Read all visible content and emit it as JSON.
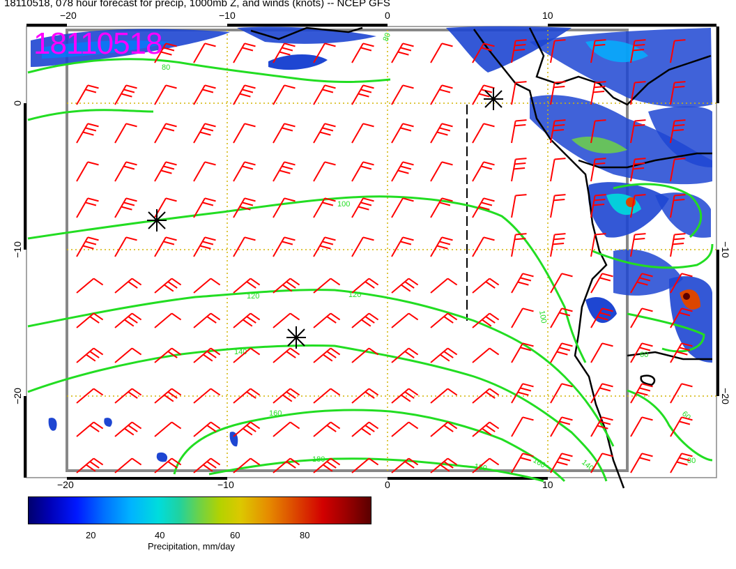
{
  "title": "18110518, 078 hour forecast for precip, 1000mb Z, and winds (knots) -- NCEP GFS",
  "stamp": "18110518",
  "axes": {
    "top_ticks": [
      "−20",
      "−10",
      "0",
      "10"
    ],
    "bottom_ticks": [
      "−20",
      "−10",
      "0",
      "10"
    ],
    "left_ticks": [
      "0",
      "−10",
      "−20"
    ],
    "right_ticks": [
      "−10",
      "−20"
    ]
  },
  "contour_labels": [
    "80",
    "80",
    "100",
    "100",
    "120",
    "120",
    "140",
    "140",
    "160",
    "160",
    "180",
    "180",
    "60",
    "60",
    "80"
  ],
  "colorbar": {
    "ticks": [
      "20",
      "40",
      "60",
      "80"
    ],
    "label": "Precipitation, mm/day",
    "colors": [
      "#00006e",
      "#0018ff",
      "#00b4ff",
      "#6ed246",
      "#dcc800",
      "#dc4600",
      "#d20000",
      "#5a0000"
    ]
  },
  "colors": {
    "stamp": "#ff00ff",
    "wind_barbs": "#ff0000",
    "contours": "#22dd22",
    "grid": "#d2b400",
    "coast": "#000000"
  },
  "markers": [
    "pressure-center-star",
    "pressure-center-star",
    "pressure-center-star"
  ]
}
